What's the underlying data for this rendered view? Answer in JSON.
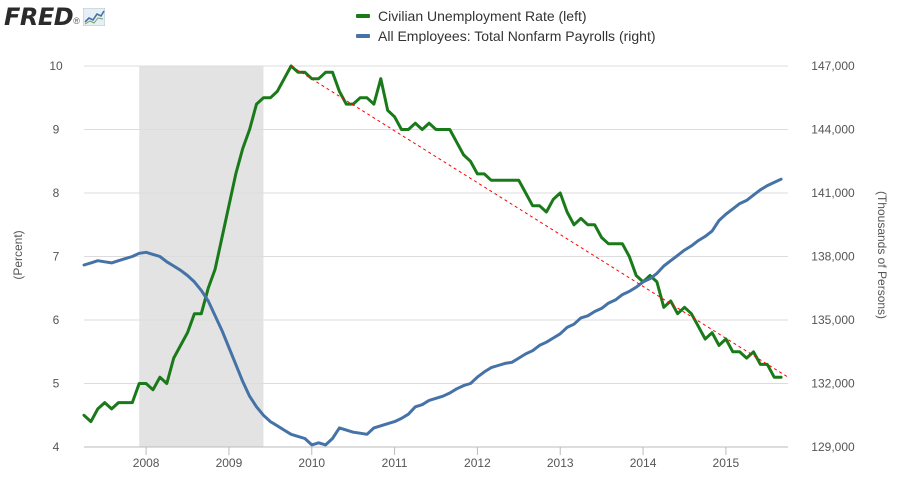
{
  "logo": {
    "text": "FRED",
    "trademark": "®",
    "icon": "line-chart-icon"
  },
  "colors": {
    "unemployment": "#1a7a1a",
    "payrolls": "#4572a7",
    "trend": "#ff0000",
    "recession": "#e3e3e3",
    "grid": "#dcdcdc"
  },
  "chart_data": {
    "type": "line",
    "series": [
      {
        "name": "Civilian Unemployment Rate (left)",
        "axis": "left",
        "x": [
          "2007-04",
          "2007-05",
          "2007-06",
          "2007-07",
          "2007-08",
          "2007-09",
          "2007-10",
          "2007-11",
          "2007-12",
          "2008-01",
          "2008-02",
          "2008-03",
          "2008-04",
          "2008-05",
          "2008-06",
          "2008-07",
          "2008-08",
          "2008-09",
          "2008-10",
          "2008-11",
          "2008-12",
          "2009-01",
          "2009-02",
          "2009-03",
          "2009-04",
          "2009-05",
          "2009-06",
          "2009-07",
          "2009-08",
          "2009-09",
          "2009-10",
          "2009-11",
          "2009-12",
          "2010-01",
          "2010-02",
          "2010-03",
          "2010-04",
          "2010-05",
          "2010-06",
          "2010-07",
          "2010-08",
          "2010-09",
          "2010-10",
          "2010-11",
          "2010-12",
          "2011-01",
          "2011-02",
          "2011-03",
          "2011-04",
          "2011-05",
          "2011-06",
          "2011-07",
          "2011-08",
          "2011-09",
          "2011-10",
          "2011-11",
          "2011-12",
          "2012-01",
          "2012-02",
          "2012-03",
          "2012-04",
          "2012-05",
          "2012-06",
          "2012-07",
          "2012-08",
          "2012-09",
          "2012-10",
          "2012-11",
          "2012-12",
          "2013-01",
          "2013-02",
          "2013-03",
          "2013-04",
          "2013-05",
          "2013-06",
          "2013-07",
          "2013-08",
          "2013-09",
          "2013-10",
          "2013-11",
          "2013-12",
          "2014-01",
          "2014-02",
          "2014-03",
          "2014-04",
          "2014-05",
          "2014-06",
          "2014-07",
          "2014-08",
          "2014-09",
          "2014-10",
          "2014-11",
          "2014-12",
          "2015-01",
          "2015-02",
          "2015-03",
          "2015-04",
          "2015-05",
          "2015-06",
          "2015-07",
          "2015-08",
          "2015-09"
        ],
        "values": [
          4.5,
          4.4,
          4.6,
          4.7,
          4.6,
          4.7,
          4.7,
          4.7,
          5.0,
          5.0,
          4.9,
          5.1,
          5.0,
          5.4,
          5.6,
          5.8,
          6.1,
          6.1,
          6.5,
          6.8,
          7.3,
          7.8,
          8.3,
          8.7,
          9.0,
          9.4,
          9.5,
          9.5,
          9.6,
          9.8,
          10.0,
          9.9,
          9.9,
          9.8,
          9.8,
          9.9,
          9.9,
          9.6,
          9.4,
          9.4,
          9.5,
          9.5,
          9.4,
          9.8,
          9.3,
          9.2,
          9.0,
          9.0,
          9.1,
          9.0,
          9.1,
          9.0,
          9.0,
          9.0,
          8.8,
          8.6,
          8.5,
          8.3,
          8.3,
          8.2,
          8.2,
          8.2,
          8.2,
          8.2,
          8.0,
          7.8,
          7.8,
          7.7,
          7.9,
          8.0,
          7.7,
          7.5,
          7.6,
          7.5,
          7.5,
          7.3,
          7.2,
          7.2,
          7.2,
          7.0,
          6.7,
          6.6,
          6.7,
          6.6,
          6.2,
          6.3,
          6.1,
          6.2,
          6.1,
          5.9,
          5.7,
          5.8,
          5.6,
          5.7,
          5.5,
          5.5,
          5.4,
          5.5,
          5.3,
          5.3,
          5.1,
          5.1
        ]
      },
      {
        "name": "All Employees: Total Nonfarm Payrolls (right)",
        "axis": "right",
        "x": [
          "2007-04",
          "2007-05",
          "2007-06",
          "2007-07",
          "2007-08",
          "2007-09",
          "2007-10",
          "2007-11",
          "2007-12",
          "2008-01",
          "2008-02",
          "2008-03",
          "2008-04",
          "2008-05",
          "2008-06",
          "2008-07",
          "2008-08",
          "2008-09",
          "2008-10",
          "2008-11",
          "2008-12",
          "2009-01",
          "2009-02",
          "2009-03",
          "2009-04",
          "2009-05",
          "2009-06",
          "2009-07",
          "2009-08",
          "2009-09",
          "2009-10",
          "2009-11",
          "2009-12",
          "2010-01",
          "2010-02",
          "2010-03",
          "2010-04",
          "2010-05",
          "2010-06",
          "2010-07",
          "2010-08",
          "2010-09",
          "2010-10",
          "2010-11",
          "2010-12",
          "2011-01",
          "2011-02",
          "2011-03",
          "2011-04",
          "2011-05",
          "2011-06",
          "2011-07",
          "2011-08",
          "2011-09",
          "2011-10",
          "2011-11",
          "2011-12",
          "2012-01",
          "2012-02",
          "2012-03",
          "2012-04",
          "2012-05",
          "2012-06",
          "2012-07",
          "2012-08",
          "2012-09",
          "2012-10",
          "2012-11",
          "2012-12",
          "2013-01",
          "2013-02",
          "2013-03",
          "2013-04",
          "2013-05",
          "2013-06",
          "2013-07",
          "2013-08",
          "2013-09",
          "2013-10",
          "2013-11",
          "2013-12",
          "2014-01",
          "2014-02",
          "2014-03",
          "2014-04",
          "2014-05",
          "2014-06",
          "2014-07",
          "2014-08",
          "2014-09",
          "2014-10",
          "2014-11",
          "2014-12",
          "2015-01",
          "2015-02",
          "2015-03",
          "2015-04",
          "2015-05",
          "2015-06",
          "2015-07",
          "2015-08",
          "2015-09"
        ],
        "values": [
          137600,
          137700,
          137800,
          137750,
          137700,
          137800,
          137900,
          138000,
          138150,
          138200,
          138100,
          138000,
          137750,
          137550,
          137350,
          137100,
          136800,
          136400,
          135900,
          135200,
          134500,
          133700,
          132900,
          132100,
          131400,
          130900,
          130500,
          130200,
          130000,
          129800,
          129600,
          129500,
          129400,
          129100,
          129200,
          129100,
          129400,
          129900,
          129800,
          129700,
          129650,
          129600,
          129900,
          130000,
          130100,
          130200,
          130350,
          130550,
          130900,
          131000,
          131200,
          131300,
          131400,
          131550,
          131750,
          131900,
          132000,
          132300,
          132550,
          132750,
          132850,
          132950,
          133000,
          133200,
          133400,
          133550,
          133800,
          133950,
          134150,
          134350,
          134650,
          134800,
          135100,
          135200,
          135400,
          135550,
          135800,
          135950,
          136200,
          136350,
          136550,
          136800,
          136950,
          137200,
          137550,
          137800,
          138050,
          138300,
          138500,
          138750,
          138950,
          139200,
          139700,
          140000,
          140250,
          140500,
          140650,
          140900,
          141150,
          141350,
          141500,
          141650
        ]
      }
    ],
    "trend_line": {
      "x": [
        "2009-10",
        "2015-10"
      ],
      "values": [
        10.0,
        5.1
      ],
      "axis": "left"
    },
    "recession": {
      "start": "2007-12",
      "end": "2009-06"
    },
    "x_ticks": [
      "2008",
      "2009",
      "2010",
      "2011",
      "2012",
      "2013",
      "2014",
      "2015"
    ],
    "xlim": [
      "2007-04",
      "2015-10"
    ],
    "y_left": {
      "ticks": [
        "4",
        "5",
        "6",
        "7",
        "8",
        "9",
        "10"
      ],
      "ylim": [
        4,
        10
      ],
      "label": "(Percent)"
    },
    "y_right": {
      "ticks": [
        "129,000",
        "132,000",
        "135,000",
        "138,000",
        "141,000",
        "144,000",
        "147,000"
      ],
      "ylim": [
        129000,
        147000
      ],
      "label": "(Thousands of Persons)"
    },
    "grid": true,
    "legend": "top-center"
  }
}
